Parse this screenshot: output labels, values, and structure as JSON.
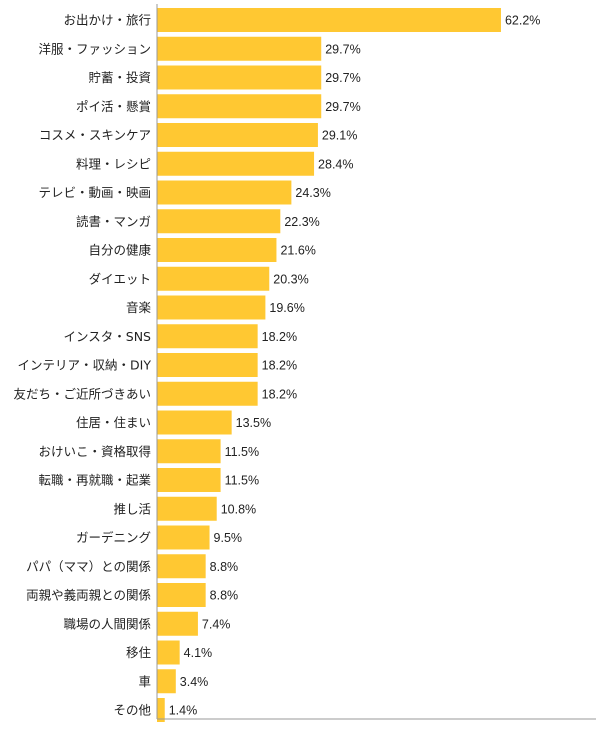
{
  "chart_data": {
    "type": "bar",
    "orientation": "horizontal",
    "categories": [
      "お出かけ・旅行",
      "洋服・ファッション",
      "貯蓄・投資",
      "ポイ活・懸賞",
      "コスメ・スキンケア",
      "料理・レシピ",
      "テレビ・動画・映画",
      "読書・マンガ",
      "自分の健康",
      "ダイエット",
      "音楽",
      "インスタ・SNS",
      "インテリア・収納・DIY",
      "友だち・ご近所づきあい",
      "住居・住まい",
      "おけいこ・資格取得",
      "転職・再就職・起業",
      "推し活",
      "ガーデニング",
      "パパ（ママ）との関係",
      "両親や義両親との関係",
      "職場の人間関係",
      "移住",
      "車",
      "その他"
    ],
    "values": [
      62.2,
      29.7,
      29.7,
      29.7,
      29.1,
      28.4,
      24.3,
      22.3,
      21.6,
      20.3,
      19.6,
      18.2,
      18.2,
      18.2,
      13.5,
      11.5,
      11.5,
      10.8,
      9.5,
      8.8,
      8.8,
      7.4,
      4.1,
      3.4,
      1.4
    ],
    "value_labels": [
      "62.2%",
      "29.7%",
      "29.7%",
      "29.7%",
      "29.1%",
      "28.4%",
      "24.3%",
      "22.3%",
      "21.6%",
      "20.3%",
      "19.6%",
      "18.2%",
      "18.2%",
      "18.2%",
      "13.5%",
      "11.5%",
      "11.5%",
      "10.8%",
      "9.5%",
      "8.8%",
      "8.8%",
      "7.4%",
      "4.1%",
      "3.4%",
      "1.4%"
    ],
    "xlim": [
      0,
      100
    ],
    "grid": false,
    "legend": "none",
    "colors": {
      "bar": "#FFC832",
      "axis": "#999999",
      "text": "#222222"
    }
  }
}
